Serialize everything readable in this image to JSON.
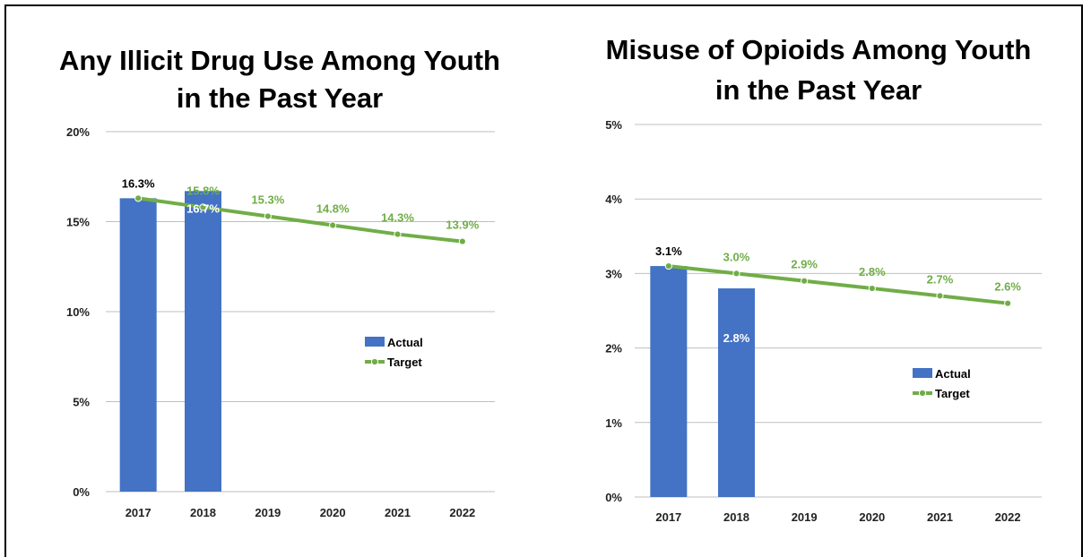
{
  "colors": {
    "actual": "#4472C4",
    "target": "#70AD47",
    "grid": "#BFBFBF",
    "text": "#000000"
  },
  "chart_data": [
    {
      "type": "bar",
      "title_lines": [
        "Any Illicit Drug Use Among Youth",
        "in the Past Year"
      ],
      "categories": [
        "2017",
        "2018",
        "2019",
        "2020",
        "2021",
        "2022"
      ],
      "ylim": [
        0,
        20
      ],
      "yticks": [
        0,
        5,
        10,
        15,
        20
      ],
      "ytick_labels": [
        "0%",
        "5%",
        "10%",
        "15%",
        "20%"
      ],
      "series": [
        {
          "name": "Actual",
          "kind": "bar",
          "values": [
            16.3,
            16.7,
            null,
            null,
            null,
            null
          ],
          "labels": [
            "16.3%",
            "16.7%",
            "",
            "",
            "",
            ""
          ]
        },
        {
          "name": "Target",
          "kind": "line",
          "values": [
            16.3,
            15.8,
            15.3,
            14.8,
            14.3,
            13.9
          ],
          "labels": [
            "",
            "15.8%",
            "15.3%",
            "14.8%",
            "14.3%",
            "13.9%"
          ]
        }
      ],
      "legend": "center-right",
      "grid": true
    },
    {
      "type": "bar",
      "title_lines": [
        "Misuse of Opioids Among Youth",
        "in the Past Year"
      ],
      "categories": [
        "2017",
        "2018",
        "2019",
        "2020",
        "2021",
        "2022"
      ],
      "ylim": [
        0,
        5
      ],
      "yticks": [
        0,
        1,
        2,
        3,
        4,
        5
      ],
      "ytick_labels": [
        "0%",
        "1%",
        "2%",
        "3%",
        "4%",
        "5%"
      ],
      "series": [
        {
          "name": "Actual",
          "kind": "bar",
          "values": [
            3.1,
            2.8,
            null,
            null,
            null,
            null
          ],
          "labels": [
            "3.1%",
            "2.8%",
            "",
            "",
            "",
            ""
          ]
        },
        {
          "name": "Target",
          "kind": "line",
          "values": [
            3.1,
            3.0,
            2.9,
            2.8,
            2.7,
            2.6
          ],
          "labels": [
            "",
            "3.0%",
            "2.9%",
            "2.8%",
            "2.7%",
            "2.6%"
          ]
        }
      ],
      "legend": "center-right",
      "grid": true
    }
  ]
}
